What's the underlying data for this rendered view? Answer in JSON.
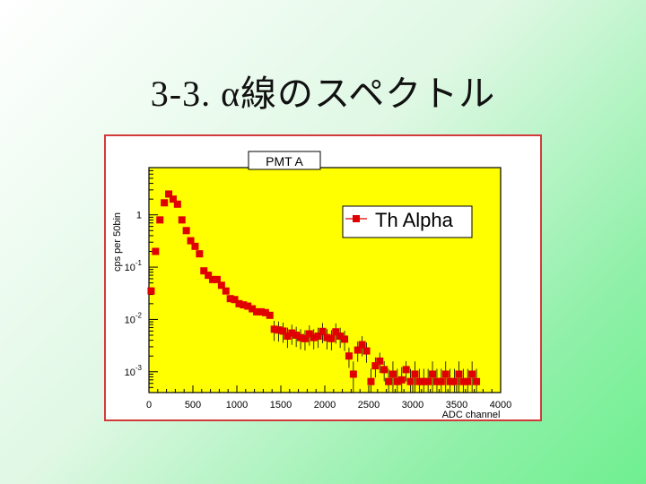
{
  "slide": {
    "title": "3-3. α線のスペクトル"
  },
  "colors": {
    "plot_bg": "#ffff00",
    "marker": "#e00000",
    "frame": "#d23a3a"
  },
  "chart_data": {
    "type": "scatter",
    "title": "PMT A",
    "xlabel": "ADC channel",
    "ylabel": "cps per 50bin",
    "xlim": [
      0,
      4000
    ],
    "ylim": [
      0.0004,
      8
    ],
    "yscale": "log",
    "x_ticks": [
      "0",
      "500",
      "1000",
      "1500",
      "2000",
      "2500",
      "3000",
      "3500",
      "4000"
    ],
    "y_ticks": [
      {
        "value": 1,
        "label": "1"
      },
      {
        "value": 0.1,
        "label": "10-1",
        "base": "10",
        "exp": "-1"
      },
      {
        "value": 0.01,
        "label": "10-2",
        "base": "10",
        "exp": "-2"
      },
      {
        "value": 0.001,
        "label": "10-3",
        "base": "10",
        "exp": "-3"
      }
    ],
    "legend": {
      "label": "Th Alpha",
      "position": "top-right"
    },
    "series": [
      {
        "name": "Th Alpha",
        "x": [
          25,
          75,
          125,
          175,
          225,
          275,
          325,
          375,
          425,
          475,
          525,
          575,
          625,
          675,
          725,
          775,
          825,
          875,
          925,
          975,
          1025,
          1075,
          1125,
          1175,
          1225,
          1275,
          1325,
          1375,
          1425,
          1475,
          1525,
          1575,
          1625,
          1675,
          1725,
          1775,
          1825,
          1875,
          1925,
          1975,
          2025,
          2075,
          2125,
          2175,
          2225,
          2275,
          2325,
          2375,
          2425,
          2475,
          2525,
          2575,
          2625,
          2675,
          2725,
          2775,
          2825,
          2875,
          2925,
          2975,
          3025,
          3075,
          3125,
          3175,
          3225,
          3275,
          3325,
          3375,
          3425,
          3475,
          3525,
          3575,
          3625,
          3675,
          3725
        ],
        "y": [
          0.035,
          0.2,
          0.8,
          1.7,
          2.5,
          2.0,
          1.6,
          0.8,
          0.5,
          0.32,
          0.25,
          0.18,
          0.085,
          0.07,
          0.058,
          0.058,
          0.045,
          0.035,
          0.025,
          0.024,
          0.02,
          0.019,
          0.018,
          0.016,
          0.014,
          0.014,
          0.0135,
          0.012,
          0.0065,
          0.0063,
          0.006,
          0.0048,
          0.0055,
          0.005,
          0.0045,
          0.0043,
          0.0053,
          0.0045,
          0.0048,
          0.0059,
          0.0045,
          0.0043,
          0.0058,
          0.0048,
          0.0042,
          0.002,
          0.0009,
          0.0026,
          0.0033,
          0.0025,
          0.00065,
          0.0013,
          0.0016,
          0.0011,
          0.00065,
          0.0009,
          0.00065,
          0.0007,
          0.0011,
          0.00065,
          0.0009,
          0.00065,
          0.00065,
          0.00065,
          0.0009,
          0.00065,
          0.00065,
          0.0009,
          0.00065,
          0.00065,
          0.0009,
          0.00065,
          0.00065,
          0.0009,
          0.00065
        ]
      }
    ]
  }
}
